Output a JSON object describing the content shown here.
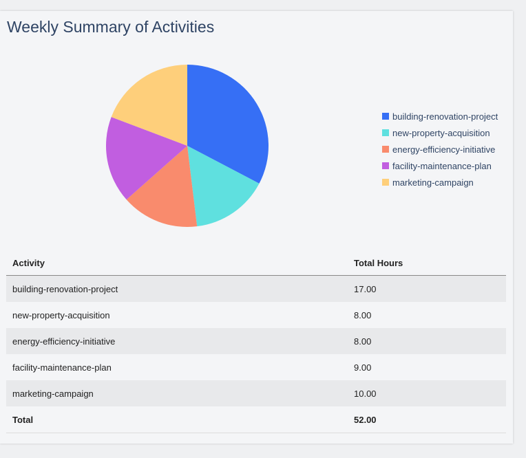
{
  "title": "Weekly Summary of Activities",
  "chart_data": {
    "type": "pie",
    "categories": [
      "building-renovation-project",
      "new-property-acquisition",
      "energy-efficiency-initiative",
      "facility-maintenance-plan",
      "marketing-campaign"
    ],
    "values": [
      17,
      8,
      8,
      9,
      10
    ],
    "colors": [
      "#366ff5",
      "#5fe0df",
      "#f98b6d",
      "#c15ee0",
      "#fecf7b"
    ],
    "legend_position": "right"
  },
  "table": {
    "headers": [
      "Activity",
      "Total Hours"
    ],
    "rows": [
      [
        "building-renovation-project",
        "17.00"
      ],
      [
        "new-property-acquisition",
        "8.00"
      ],
      [
        "energy-efficiency-initiative",
        "8.00"
      ],
      [
        "facility-maintenance-plan",
        "9.00"
      ],
      [
        "marketing-campaign",
        "10.00"
      ]
    ],
    "total": [
      "Total",
      "52.00"
    ]
  }
}
